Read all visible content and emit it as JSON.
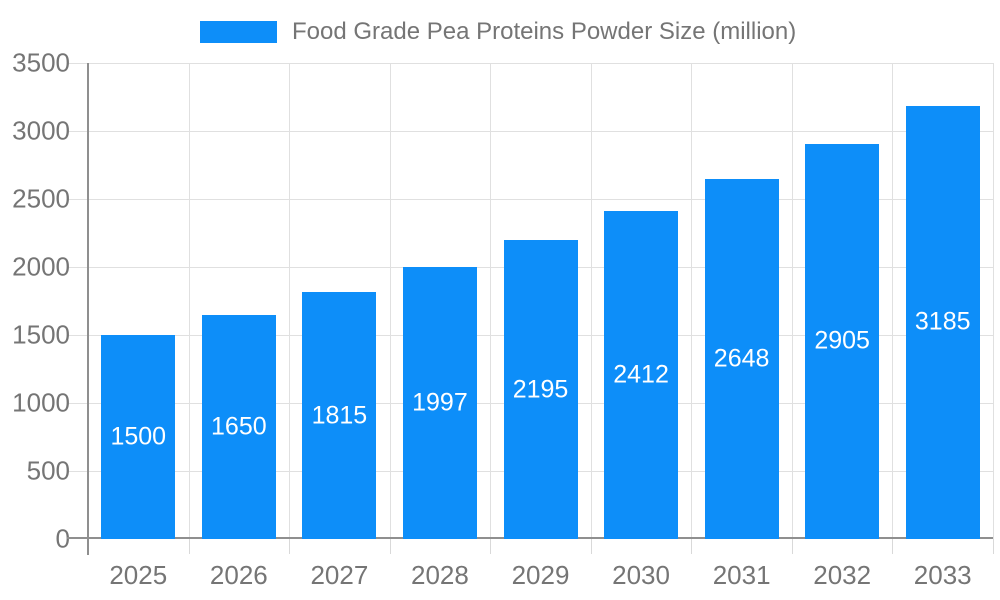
{
  "legend": {
    "label": "Food Grade Pea Proteins Powder Size (million)"
  },
  "colors": {
    "bar": "#0d8ef9",
    "bar_label": "#ffffff",
    "axis_text": "#757575",
    "grid": "#e0e0e0",
    "tick": "#d9d9d9",
    "axis_line": "#8f8f8f",
    "background": "#ffffff"
  },
  "chart_data": {
    "type": "bar",
    "title": "Food Grade Pea Proteins Powder Size (million)",
    "categories": [
      "2025",
      "2026",
      "2027",
      "2028",
      "2029",
      "2030",
      "2031",
      "2032",
      "2033"
    ],
    "values": [
      1500,
      1650,
      1815,
      1997,
      2195,
      2412,
      2648,
      2905,
      3185
    ],
    "series_name": "Food Grade Pea Proteins Powder Size (million)",
    "xlabel": "",
    "ylabel": "",
    "ylim": [
      0,
      3500
    ],
    "yticks": [
      0,
      500,
      1000,
      1500,
      2000,
      2500,
      3000,
      3500
    ],
    "grid": true,
    "legend_position": "top",
    "value_labels": "inside-center"
  }
}
